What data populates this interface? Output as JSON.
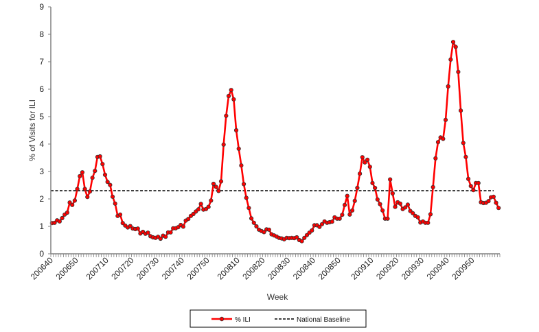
{
  "chart_data": {
    "type": "line",
    "title": "",
    "xlabel": "Week",
    "ylabel": "% of Visits for ILI",
    "ylim": [
      0,
      9
    ],
    "y_ticks": [
      0,
      1,
      2,
      3,
      4,
      5,
      6,
      7,
      8,
      9
    ],
    "grid": false,
    "legend_position": "bottom",
    "x_tick_labels": [
      {
        "label": "200640",
        "index": 0
      },
      {
        "label": "200650",
        "index": 10
      },
      {
        "label": "200710",
        "index": 22
      },
      {
        "label": "200720",
        "index": 32
      },
      {
        "label": "200730",
        "index": 42
      },
      {
        "label": "200740",
        "index": 52
      },
      {
        "label": "200750",
        "index": 62
      },
      {
        "label": "200810",
        "index": 74
      },
      {
        "label": "200820",
        "index": 84
      },
      {
        "label": "200830",
        "index": 94
      },
      {
        "label": "200840",
        "index": 104
      },
      {
        "label": "200850",
        "index": 114
      },
      {
        "label": "200910",
        "index": 127
      },
      {
        "label": "200920",
        "index": 137
      },
      {
        "label": "200930",
        "index": 147
      },
      {
        "label": "200940",
        "index": 157
      },
      {
        "label": "200950",
        "index": 167
      }
    ],
    "series": [
      {
        "name": "% ILI",
        "color": "#ff0000",
        "marker_stroke": "#333333",
        "values": [
          1.12,
          1.13,
          1.22,
          1.18,
          1.3,
          1.43,
          1.5,
          1.87,
          1.78,
          1.94,
          2.36,
          2.83,
          2.97,
          2.36,
          2.07,
          2.27,
          2.77,
          3.02,
          3.53,
          3.55,
          3.27,
          2.88,
          2.62,
          2.51,
          2.08,
          1.83,
          1.38,
          1.43,
          1.12,
          1.03,
          0.96,
          1.01,
          0.92,
          0.9,
          0.92,
          0.74,
          0.8,
          0.73,
          0.77,
          0.64,
          0.6,
          0.58,
          0.62,
          0.55,
          0.66,
          0.62,
          0.78,
          0.78,
          0.93,
          0.93,
          0.97,
          1.05,
          0.99,
          1.21,
          1.27,
          1.38,
          1.45,
          1.54,
          1.62,
          1.82,
          1.61,
          1.63,
          1.71,
          1.94,
          2.55,
          2.44,
          2.29,
          2.64,
          3.98,
          5.03,
          5.75,
          5.97,
          5.63,
          4.5,
          3.83,
          3.22,
          2.54,
          2.04,
          1.67,
          1.29,
          1.13,
          1.0,
          0.88,
          0.83,
          0.79,
          0.89,
          0.88,
          0.71,
          0.67,
          0.63,
          0.58,
          0.56,
          0.53,
          0.58,
          0.57,
          0.58,
          0.57,
          0.6,
          0.5,
          0.46,
          0.58,
          0.68,
          0.77,
          0.85,
          1.04,
          1.04,
          0.98,
          1.08,
          1.18,
          1.13,
          1.15,
          1.17,
          1.33,
          1.28,
          1.28,
          1.42,
          1.78,
          2.11,
          1.43,
          1.58,
          1.93,
          2.4,
          2.92,
          3.52,
          3.33,
          3.43,
          3.17,
          2.58,
          2.4,
          1.98,
          1.81,
          1.58,
          1.28,
          1.28,
          2.71,
          2.2,
          1.71,
          1.88,
          1.83,
          1.63,
          1.69,
          1.79,
          1.56,
          1.48,
          1.38,
          1.33,
          1.14,
          1.18,
          1.13,
          1.13,
          1.44,
          2.43,
          3.48,
          4.07,
          4.24,
          4.19,
          4.88,
          6.1,
          7.08,
          7.72,
          7.54,
          6.63,
          5.22,
          4.04,
          3.53,
          2.73,
          2.47,
          2.32,
          2.58,
          2.58,
          1.88,
          1.85,
          1.86,
          1.92,
          2.06,
          2.08,
          1.86,
          1.67
        ]
      },
      {
        "name": "National Baseline",
        "color": "#000000",
        "style": "dashed",
        "value": 2.3
      }
    ]
  }
}
